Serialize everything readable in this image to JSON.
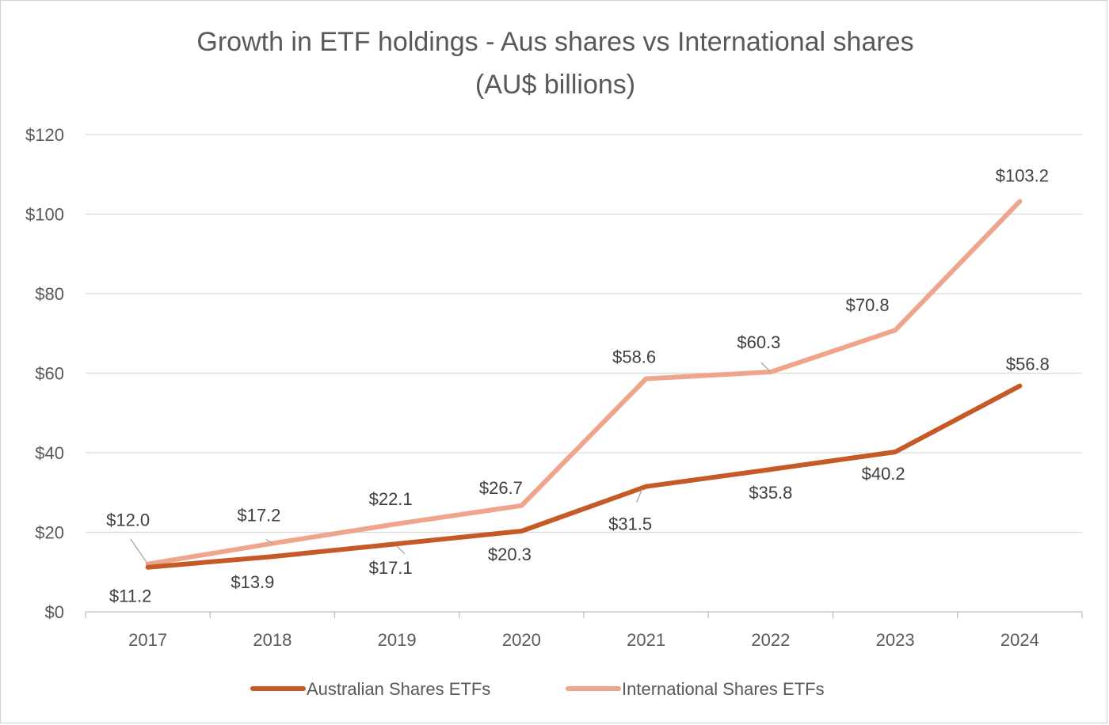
{
  "chart_data": {
    "type": "line",
    "title": "Growth in ETF holdings - Aus shares vs International shares",
    "subtitle": "(AU$ billions)",
    "categories": [
      "2017",
      "2018",
      "2019",
      "2020",
      "2021",
      "2022",
      "2023",
      "2024"
    ],
    "series": [
      {
        "name": "Australian Shares ETFs",
        "color": "#c55a26",
        "values": [
          11.2,
          13.9,
          17.1,
          20.3,
          31.5,
          35.8,
          40.2,
          56.8
        ],
        "labels": [
          "$11.2",
          "$13.9",
          "$17.1",
          "$20.3",
          "$31.5",
          "$35.8",
          "$40.2",
          "$56.8"
        ]
      },
      {
        "name": "International Shares ETFs",
        "color": "#eea58b",
        "values": [
          12.0,
          17.2,
          22.1,
          26.7,
          58.6,
          60.3,
          70.8,
          103.2
        ],
        "labels": [
          "$12.0",
          "$17.2",
          "$22.1",
          "$26.7",
          "$58.6",
          "$60.3",
          "$70.8",
          "$103.2"
        ]
      }
    ],
    "yticks": [
      0,
      20,
      40,
      60,
      80,
      100,
      120
    ],
    "ytick_labels": [
      "$0",
      "$20",
      "$40",
      "$60",
      "$80",
      "$100",
      "$120"
    ],
    "ylim": [
      0,
      120
    ],
    "xlabel": "",
    "ylabel": "",
    "grid": "horizontal",
    "legend_position": "bottom"
  }
}
